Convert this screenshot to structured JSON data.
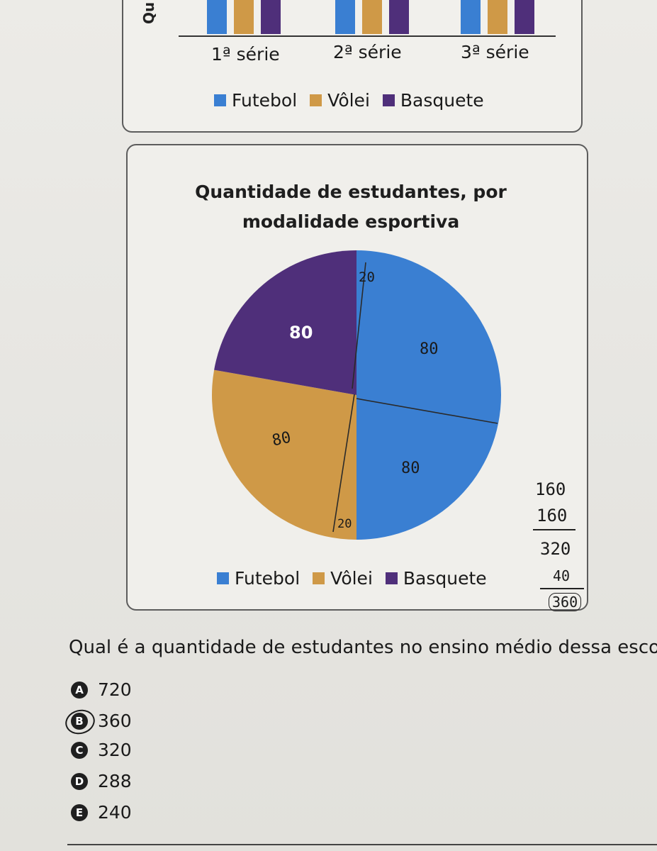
{
  "top_chart": {
    "ylabel_fragment": "Qu",
    "categories": [
      "1ª série",
      "2ª série",
      "3ª série"
    ],
    "legend": [
      "Futebol",
      "Vôlei",
      "Basquete"
    ]
  },
  "chart_data": {
    "type": "pie",
    "title": "Quantidade de estudantes, por modalidade esportiva",
    "title_line1": "Quantidade de estudantes, por",
    "title_line2": "modalidade esportiva",
    "slices": [
      {
        "name": "Futebol",
        "value": 180,
        "color": "#3a7fd2"
      },
      {
        "name": "Vôlei",
        "value": 100,
        "color": "#cf9947"
      },
      {
        "name": "Basquete",
        "value": 80,
        "color": "#4f2f7a"
      }
    ],
    "data_labels": [
      "80"
    ],
    "legend": [
      "Futebol",
      "Vôlei",
      "Basquete"
    ],
    "legend_placement": "bottom"
  },
  "handwritten": {
    "pie_notes": [
      "20",
      "80",
      "80",
      "80",
      "20"
    ],
    "sum_lines": [
      "160",
      "160",
      "320",
      "40",
      "360"
    ]
  },
  "question": {
    "text": "Qual é a quantidade de estudantes no ensino médio dessa escola?",
    "options": [
      {
        "letter": "A",
        "value": "720"
      },
      {
        "letter": "B",
        "value": "360"
      },
      {
        "letter": "C",
        "value": "320"
      },
      {
        "letter": "D",
        "value": "288"
      },
      {
        "letter": "E",
        "value": "240"
      }
    ]
  },
  "colors": {
    "futebol": "#3a7fd2",
    "volei": "#cf9947",
    "basquete": "#4f2f7a"
  }
}
